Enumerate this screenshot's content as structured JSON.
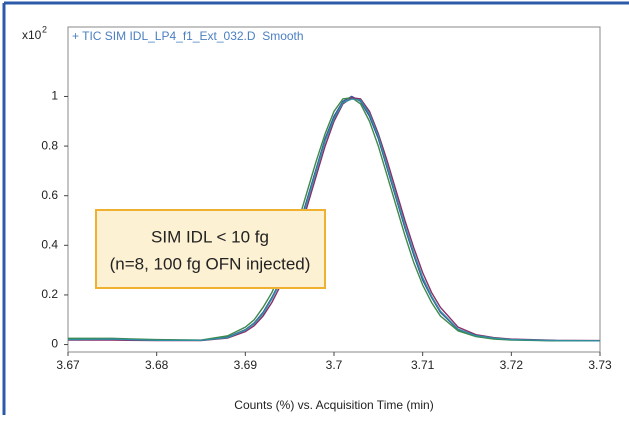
{
  "chart_data": {
    "type": "line",
    "title": "+ TIC SIM IDL_LP4_f1_Ext_032.D  Smooth",
    "y_multiplier": "x10",
    "y_multiplier_exponent": "2",
    "xlabel": "Counts (%) vs. Acquisition Time (min)",
    "annotation": [
      "SIM IDL < 10 fg",
      "(n=8, 100 fg OFN injected)"
    ],
    "x": [
      3.67,
      3.675,
      3.68,
      3.685,
      3.688,
      3.69,
      3.691,
      3.692,
      3.693,
      3.694,
      3.695,
      3.696,
      3.697,
      3.698,
      3.699,
      3.7,
      3.701,
      3.702,
      3.703,
      3.704,
      3.705,
      3.706,
      3.707,
      3.708,
      3.709,
      3.71,
      3.711,
      3.712,
      3.714,
      3.716,
      3.718,
      3.72,
      3.725,
      3.73
    ],
    "series": [
      {
        "color": "#3a4fa0",
        "values": [
          0.02,
          0.02,
          0.018,
          0.017,
          0.03,
          0.06,
          0.087,
          0.13,
          0.19,
          0.26,
          0.36,
          0.47,
          0.59,
          0.71,
          0.83,
          0.92,
          0.98,
          1.0,
          0.98,
          0.92,
          0.83,
          0.71,
          0.59,
          0.47,
          0.36,
          0.26,
          0.19,
          0.13,
          0.06,
          0.035,
          0.025,
          0.02,
          0.015,
          0.015
        ]
      },
      {
        "color": "#3d8a4a",
        "values": [
          0.025,
          0.025,
          0.02,
          0.018,
          0.035,
          0.07,
          0.1,
          0.15,
          0.21,
          0.29,
          0.39,
          0.5,
          0.62,
          0.74,
          0.85,
          0.94,
          0.99,
          0.995,
          0.97,
          0.9,
          0.8,
          0.68,
          0.56,
          0.44,
          0.33,
          0.24,
          0.17,
          0.115,
          0.055,
          0.032,
          0.022,
          0.018,
          0.015,
          0.015
        ]
      },
      {
        "color": "#8a2d6a",
        "values": [
          0.018,
          0.018,
          0.016,
          0.016,
          0.026,
          0.052,
          0.076,
          0.115,
          0.17,
          0.24,
          0.33,
          0.44,
          0.56,
          0.68,
          0.8,
          0.9,
          0.97,
          0.995,
          0.99,
          0.94,
          0.85,
          0.74,
          0.62,
          0.5,
          0.39,
          0.29,
          0.21,
          0.15,
          0.07,
          0.04,
          0.028,
          0.022,
          0.017,
          0.016
        ]
      },
      {
        "color": "#2f8fa0",
        "values": [
          0.02,
          0.022,
          0.017,
          0.017,
          0.028,
          0.058,
          0.084,
          0.125,
          0.185,
          0.255,
          0.35,
          0.46,
          0.58,
          0.7,
          0.82,
          0.91,
          0.975,
          0.99,
          0.985,
          0.93,
          0.84,
          0.72,
          0.6,
          0.48,
          0.37,
          0.27,
          0.195,
          0.135,
          0.062,
          0.036,
          0.026,
          0.02,
          0.016,
          0.015
        ]
      }
    ],
    "xlim": [
      3.67,
      3.73
    ],
    "xticks": [
      3.67,
      3.68,
      3.69,
      3.7,
      3.71,
      3.72,
      3.73
    ],
    "ylim": [
      -0.03,
      1.28
    ],
    "yticks": [
      0,
      0.2,
      0.4,
      0.6,
      0.8,
      1
    ]
  }
}
